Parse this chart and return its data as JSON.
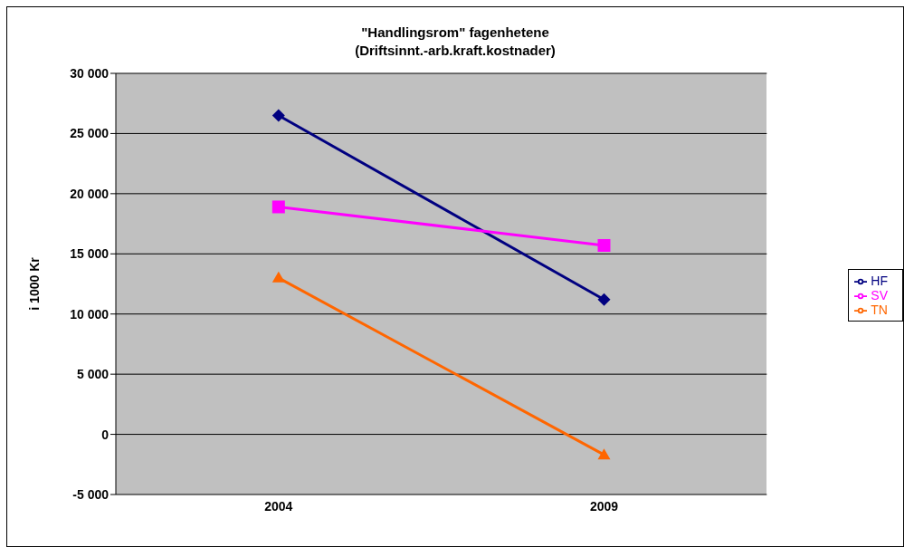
{
  "chart_data": {
    "type": "line",
    "title": "\"Handlingsrom\" fagenhetene",
    "subtitle": "(Driftsinnt.-arb.kraft.kostnader)",
    "ylabel": "i 1000 Kr",
    "categories": [
      "2004",
      "2009"
    ],
    "series": [
      {
        "name": "HF",
        "color": "#000080",
        "marker": "diamond",
        "values": [
          26500,
          11200
        ]
      },
      {
        "name": "SV",
        "color": "#ff00ff",
        "marker": "square",
        "values": [
          18900,
          15700
        ]
      },
      {
        "name": "TN",
        "color": "#ff6600",
        "marker": "triangle",
        "values": [
          13000,
          -1700
        ]
      }
    ],
    "ylim": [
      -5000,
      30000
    ],
    "yticks": [
      {
        "value": -5000,
        "label": "-5 000"
      },
      {
        "value": 0,
        "label": "0"
      },
      {
        "value": 5000,
        "label": "5 000"
      },
      {
        "value": 10000,
        "label": "10 000"
      },
      {
        "value": 15000,
        "label": "15 000"
      },
      {
        "value": 20000,
        "label": "20 000"
      },
      {
        "value": 25000,
        "label": "25 000"
      },
      {
        "value": 30000,
        "label": "30 000"
      }
    ],
    "grid": "y",
    "legend": "right"
  }
}
